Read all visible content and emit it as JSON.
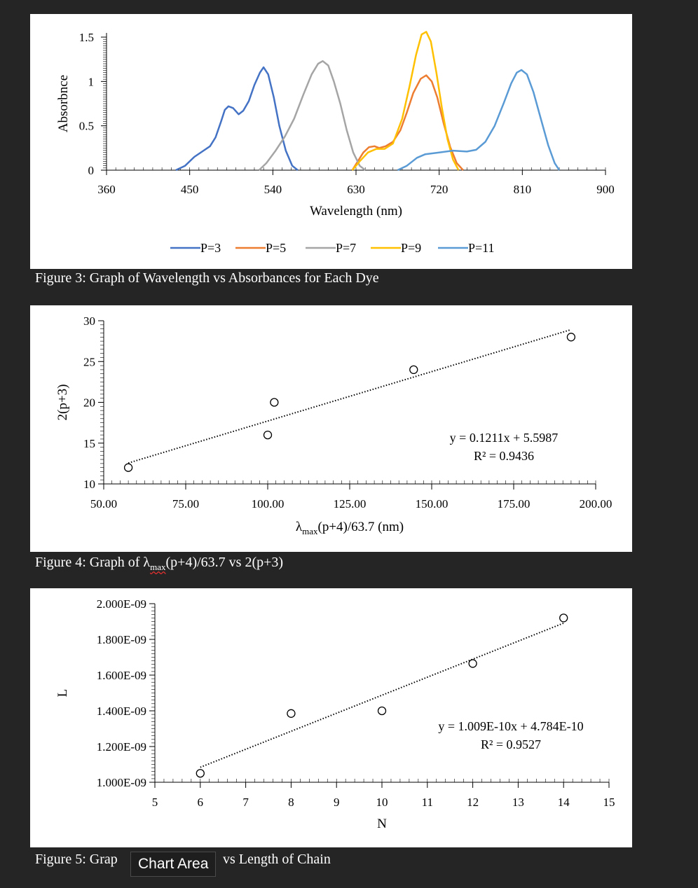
{
  "captions": {
    "fig3": "Figure 3: Graph of Wavelength vs Absorbances for Each Dye",
    "fig4_prefix": "Figure 4: Graph of ",
    "fig4_lambda": "λ",
    "fig4_sub": "max",
    "fig4_suffix": "(p+4)/63.7 vs 2(p+3)",
    "fig5_left": "Figure 5: Grap",
    "fig5_right": "vs Length of Chain"
  },
  "tooltip": "Chart Area",
  "chart_data": [
    {
      "type": "line",
      "xlabel": "Wavelength (nm)",
      "ylabel": "Absorbnce",
      "xlim": [
        360,
        900
      ],
      "ylim": [
        0,
        1.5
      ],
      "xticks": [
        "360",
        "450",
        "540",
        "630",
        "720",
        "810",
        "900"
      ],
      "yticks": [
        "0",
        "0.5",
        "1",
        "1.5"
      ],
      "legend": "bottom",
      "series": [
        {
          "name": "P=3",
          "color": "#4472C4",
          "points": [
            [
              435,
              0
            ],
            [
              445,
              0.05
            ],
            [
              455,
              0.15
            ],
            [
              465,
              0.22
            ],
            [
              472,
              0.27
            ],
            [
              478,
              0.37
            ],
            [
              484,
              0.55
            ],
            [
              488,
              0.68
            ],
            [
              492,
              0.72
            ],
            [
              497,
              0.7
            ],
            [
              503,
              0.63
            ],
            [
              508,
              0.67
            ],
            [
              514,
              0.78
            ],
            [
              520,
              0.96
            ],
            [
              526,
              1.1
            ],
            [
              530,
              1.16
            ],
            [
              535,
              1.08
            ],
            [
              541,
              0.82
            ],
            [
              547,
              0.5
            ],
            [
              554,
              0.22
            ],
            [
              561,
              0.05
            ],
            [
              567,
              0
            ]
          ]
        },
        {
          "name": "P=5",
          "color": "#ED7D31",
          "points": [
            [
              626,
              0
            ],
            [
              632,
              0.1
            ],
            [
              638,
              0.2
            ],
            [
              644,
              0.26
            ],
            [
              650,
              0.27
            ],
            [
              655,
              0.25
            ],
            [
              662,
              0.27
            ],
            [
              670,
              0.32
            ],
            [
              678,
              0.45
            ],
            [
              685,
              0.65
            ],
            [
              692,
              0.87
            ],
            [
              700,
              1.03
            ],
            [
              706,
              1.07
            ],
            [
              712,
              1.0
            ],
            [
              718,
              0.82
            ],
            [
              725,
              0.52
            ],
            [
              732,
              0.26
            ],
            [
              739,
              0.08
            ],
            [
              746,
              0
            ]
          ]
        },
        {
          "name": "P=7",
          "color": "#A5A5A5",
          "points": [
            [
              525,
              0
            ],
            [
              533,
              0.08
            ],
            [
              543,
              0.22
            ],
            [
              553,
              0.38
            ],
            [
              563,
              0.58
            ],
            [
              573,
              0.85
            ],
            [
              582,
              1.08
            ],
            [
              589,
              1.2
            ],
            [
              594,
              1.23
            ],
            [
              600,
              1.18
            ],
            [
              606,
              1.0
            ],
            [
              613,
              0.75
            ],
            [
              620,
              0.45
            ],
            [
              627,
              0.2
            ],
            [
              634,
              0.05
            ],
            [
              640,
              0
            ]
          ]
        },
        {
          "name": "P=9",
          "color": "#FFC000",
          "points": [
            [
              626,
              0
            ],
            [
              634,
              0.1
            ],
            [
              643,
              0.2
            ],
            [
              652,
              0.24
            ],
            [
              661,
              0.24
            ],
            [
              670,
              0.3
            ],
            [
              680,
              0.58
            ],
            [
              688,
              0.95
            ],
            [
              695,
              1.3
            ],
            [
              701,
              1.53
            ],
            [
              706,
              1.56
            ],
            [
              711,
              1.45
            ],
            [
              717,
              1.1
            ],
            [
              723,
              0.7
            ],
            [
              729,
              0.35
            ],
            [
              735,
              0.12
            ],
            [
              741,
              0
            ]
          ]
        },
        {
          "name": "P=11",
          "color": "#5B9BD5",
          "points": [
            [
              675,
              0
            ],
            [
              685,
              0.05
            ],
            [
              696,
              0.14
            ],
            [
              705,
              0.18
            ],
            [
              720,
              0.2
            ],
            [
              735,
              0.22
            ],
            [
              750,
              0.21
            ],
            [
              760,
              0.23
            ],
            [
              770,
              0.32
            ],
            [
              780,
              0.5
            ],
            [
              790,
              0.76
            ],
            [
              798,
              0.98
            ],
            [
              804,
              1.1
            ],
            [
              809,
              1.13
            ],
            [
              815,
              1.08
            ],
            [
              822,
              0.88
            ],
            [
              830,
              0.58
            ],
            [
              838,
              0.28
            ],
            [
              845,
              0.08
            ],
            [
              850,
              0
            ]
          ]
        }
      ]
    },
    {
      "type": "scatter",
      "xlabel_main": "λ",
      "xlabel_sub": "max",
      "xlabel_rest": "(p+4)/63.7 (nm)",
      "ylabel": "2(p+3)",
      "xlim": [
        50,
        200
      ],
      "ylim": [
        10,
        30
      ],
      "xticks": [
        "50.00",
        "75.00",
        "100.00",
        "125.00",
        "150.00",
        "175.00",
        "200.00"
      ],
      "yticks": [
        "10",
        "15",
        "20",
        "25",
        "30"
      ],
      "points": [
        [
          57.5,
          12
        ],
        [
          100,
          16
        ],
        [
          102,
          20
        ],
        [
          144.5,
          24
        ],
        [
          192.5,
          28
        ]
      ],
      "trendline": {
        "slope": 0.1211,
        "intercept": 5.5987,
        "x_range": [
          57.5,
          192.5
        ]
      },
      "equation": "y = 0.1211x + 5.5987",
      "r2": "R² = 0.9436"
    },
    {
      "type": "scatter",
      "xlabel": "N",
      "ylabel": "L",
      "xlim": [
        5,
        15
      ],
      "ylim": [
        1e-09,
        2e-09
      ],
      "xticks": [
        "5",
        "6",
        "7",
        "8",
        "9",
        "10",
        "11",
        "12",
        "13",
        "14",
        "15"
      ],
      "yticks": [
        "1.000E-09",
        "1.200E-09",
        "1.400E-09",
        "1.600E-09",
        "1.800E-09",
        "2.000E-09"
      ],
      "points": [
        [
          6,
          1.05e-09
        ],
        [
          8,
          1.385e-09
        ],
        [
          10,
          1.4e-09
        ],
        [
          12,
          1.665e-09
        ],
        [
          14,
          1.92e-09
        ]
      ],
      "trendline": {
        "slope": 1.009e-10,
        "intercept": 4.784e-10,
        "x_range": [
          6,
          14
        ]
      },
      "equation": "y = 1.009E-10x + 4.784E-10",
      "r2": "R² = 0.9527"
    }
  ]
}
